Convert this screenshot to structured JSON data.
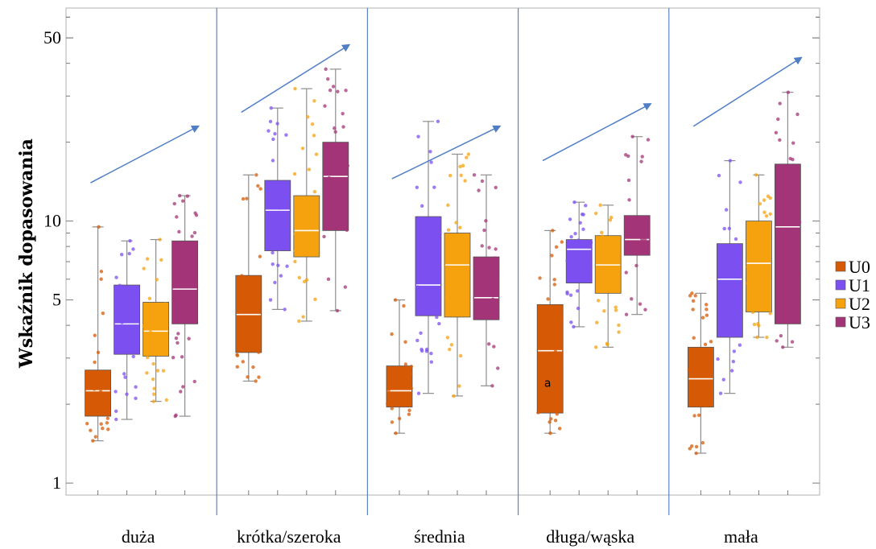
{
  "chart_data": {
    "type": "box",
    "ylabel": "Wskaźnik dopasowania",
    "xlabel": "",
    "yscale": "log",
    "ylim": [
      0.9,
      65
    ],
    "yticks": [
      1,
      5,
      10,
      50
    ],
    "ytick_labels": [
      "1",
      "5",
      "10",
      "50"
    ],
    "categories": [
      "duża",
      "krótka/szeroka",
      "średnia",
      "długa/wąska",
      "mała"
    ],
    "legend": {
      "position": "right",
      "entries": [
        "U0",
        "U1",
        "U2",
        "U3"
      ]
    },
    "colors": {
      "U0": "#d65a06",
      "U1": "#7c4ff0",
      "U2": "#f5a20e",
      "U3": "#a33477",
      "arrow": "#4f7ec6",
      "separator": "#5b85c2",
      "whisker": "#8e8e8e",
      "frame": "#b0b0b0"
    },
    "series": [
      {
        "name": "U0",
        "boxes": [
          {
            "lo": 1.45,
            "q1": 1.8,
            "median": 2.25,
            "q3": 2.7,
            "hi": 9.5
          },
          {
            "lo": 2.45,
            "q1": 3.15,
            "median": 4.4,
            "q3": 6.2,
            "hi": 15.0
          },
          {
            "lo": 1.55,
            "q1": 1.95,
            "median": 2.25,
            "q3": 2.8,
            "hi": 5.0
          },
          {
            "lo": 1.55,
            "q1": 1.85,
            "median": 3.2,
            "q3": 4.8,
            "hi": 9.2
          },
          {
            "lo": 1.3,
            "q1": 1.95,
            "median": 2.5,
            "q3": 3.3,
            "hi": 5.3
          }
        ]
      },
      {
        "name": "U1",
        "boxes": [
          {
            "lo": 1.75,
            "q1": 3.1,
            "median": 4.05,
            "q3": 5.7,
            "hi": 8.4
          },
          {
            "lo": 4.6,
            "q1": 7.7,
            "median": 11.0,
            "q3": 14.3,
            "hi": 27.0
          },
          {
            "lo": 2.2,
            "q1": 4.35,
            "median": 5.7,
            "q3": 10.4,
            "hi": 24.0
          },
          {
            "lo": 3.95,
            "q1": 5.8,
            "median": 7.8,
            "q3": 8.5,
            "hi": 11.8
          },
          {
            "lo": 2.2,
            "q1": 3.6,
            "median": 6.0,
            "q3": 8.2,
            "hi": 17.0
          }
        ]
      },
      {
        "name": "U2",
        "boxes": [
          {
            "lo": 2.05,
            "q1": 3.05,
            "median": 3.8,
            "q3": 4.9,
            "hi": 8.5
          },
          {
            "lo": 4.15,
            "q1": 7.3,
            "median": 9.2,
            "q3": 12.5,
            "hi": 32.0
          },
          {
            "lo": 2.15,
            "q1": 4.3,
            "median": 6.8,
            "q3": 9.0,
            "hi": 18.0
          },
          {
            "lo": 3.3,
            "q1": 5.3,
            "median": 6.8,
            "q3": 8.8,
            "hi": 11.5
          },
          {
            "lo": 3.6,
            "q1": 4.5,
            "median": 6.9,
            "q3": 10.0,
            "hi": 15.0
          }
        ]
      },
      {
        "name": "U3",
        "boxes": [
          {
            "lo": 1.8,
            "q1": 4.05,
            "median": 5.5,
            "q3": 8.4,
            "hi": 12.5
          },
          {
            "lo": 4.55,
            "q1": 9.2,
            "median": 14.8,
            "q3": 20.0,
            "hi": 38.0
          },
          {
            "lo": 2.35,
            "q1": 4.2,
            "median": 5.1,
            "q3": 7.3,
            "hi": 15.0
          },
          {
            "lo": 4.4,
            "q1": 7.4,
            "median": 8.5,
            "q3": 10.5,
            "hi": 21.0
          },
          {
            "lo": 3.3,
            "q1": 4.05,
            "median": 9.5,
            "q3": 16.5,
            "hi": 31.0
          }
        ]
      }
    ],
    "trend_arrows": "one rising arrow above each category group",
    "annotations": [
      {
        "text": "a",
        "category": "długa/wąska",
        "series": "U0"
      }
    ]
  }
}
